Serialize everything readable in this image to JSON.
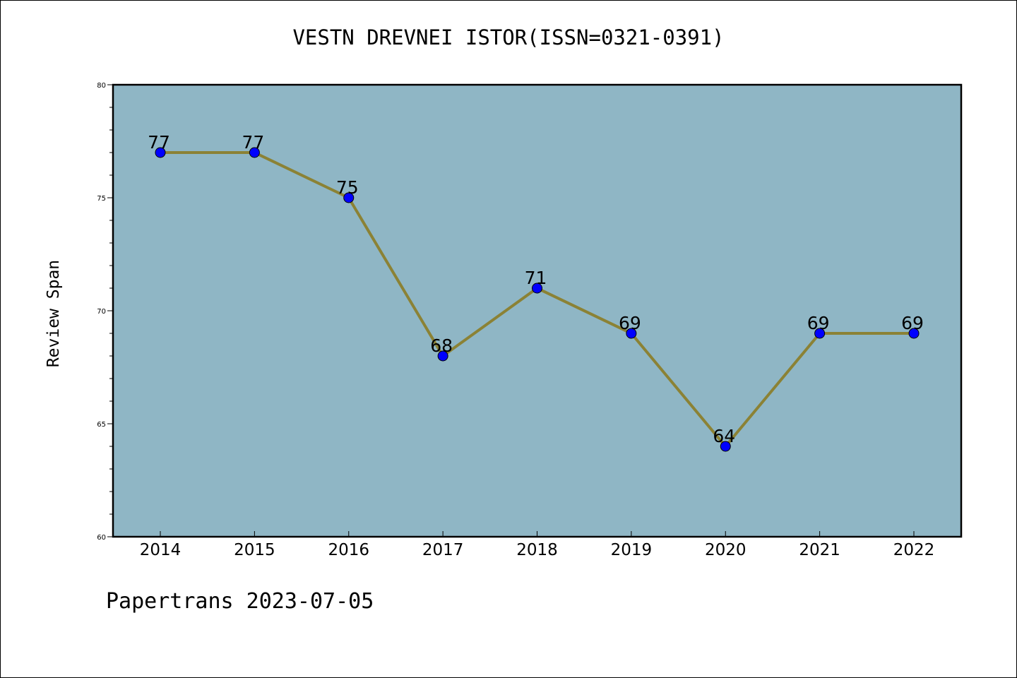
{
  "footer": {
    "text": "Papertrans 2023-07-05"
  },
  "colors": {
    "plot_background": "#8fb6c5",
    "line": "#8b8235",
    "marker": "#0000ff",
    "axis": "#000000"
  },
  "chart_data": {
    "type": "line",
    "title": "VESTN DREVNEI ISTOR(ISSN=0321-0391)",
    "xlabel": "",
    "ylabel": "Review Span",
    "categories": [
      "2014",
      "2015",
      "2016",
      "2017",
      "2018",
      "2019",
      "2020",
      "2021",
      "2022"
    ],
    "series": [
      {
        "values": [
          77,
          77,
          75,
          68,
          71,
          69,
          64,
          69,
          69
        ]
      }
    ],
    "data_labels": [
      "77",
      "77",
      "75",
      "68",
      "71",
      "69",
      "64",
      "69",
      "69"
    ],
    "ylim": [
      60,
      80
    ],
    "y_ticks": [
      60,
      65,
      70,
      75,
      80
    ],
    "y_tick_labels": [
      "60",
      "65",
      "70",
      "75",
      "80"
    ],
    "y_minor_step": 1,
    "grid": false,
    "legend": "none"
  }
}
